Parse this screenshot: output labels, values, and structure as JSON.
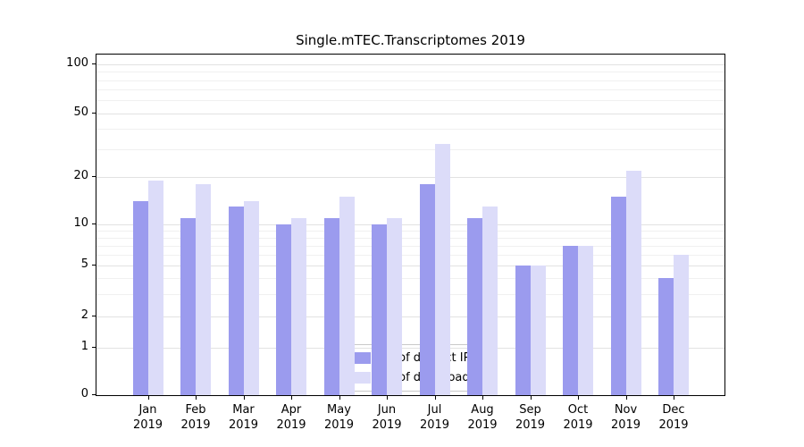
{
  "chart_data": {
    "type": "bar",
    "title": "Single.mTEC.Transcriptomes 2019",
    "categories": [
      "Jan",
      "Feb",
      "Mar",
      "Apr",
      "May",
      "Jun",
      "Jul",
      "Aug",
      "Sep",
      "Oct",
      "Nov",
      "Dec"
    ],
    "year_label": "2019",
    "series": [
      {
        "name": "Nb of distinct IPs",
        "color": "#9b9bee",
        "values": [
          14,
          11,
          13,
          10,
          11,
          10,
          18,
          11,
          5,
          7,
          15,
          4
        ]
      },
      {
        "name": "Nb of downloads",
        "color": "#dcdcf9",
        "values": [
          19,
          18,
          14,
          11,
          15,
          11,
          32,
          13,
          5,
          7,
          22,
          6
        ]
      }
    ],
    "y_ticks": [
      0,
      1,
      2,
      5,
      10,
      20,
      50,
      100
    ],
    "y_minor_ticks": [
      3,
      4,
      6,
      7,
      8,
      9,
      30,
      40,
      60,
      70,
      80,
      90
    ],
    "ylim": [
      0,
      100
    ],
    "scale": "log-like",
    "grid": true,
    "legend_position": "bottom-center",
    "xlabel": "",
    "ylabel": ""
  }
}
